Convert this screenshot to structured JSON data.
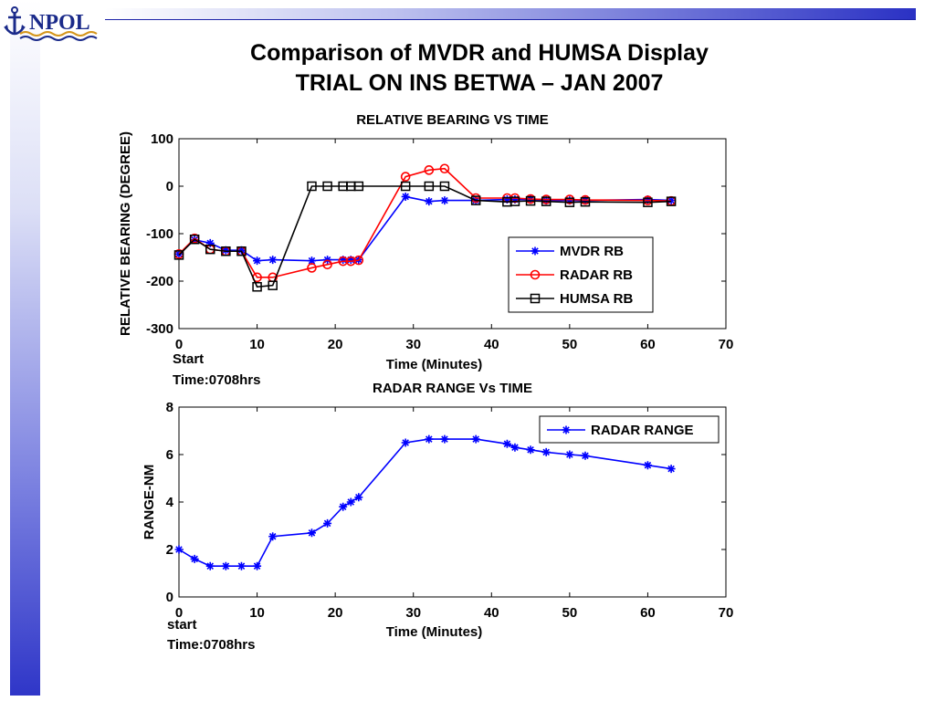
{
  "header": {
    "logo_text": "NPOL",
    "title_line1": "Comparison of MVDR and HUMSA Display",
    "title_line2": "TRIAL ON INS BETWA – JAN 2007"
  },
  "colors": {
    "mvdr": "#0000ff",
    "radar": "#ff0000",
    "humsa": "#000000",
    "range": "#0000ff",
    "accent_blue": "#2a31c4"
  },
  "chart_data": [
    {
      "type": "line",
      "title": "RELATIVE BEARING VS TIME",
      "xlabel": "Time (Minutes)",
      "ylabel": "RELATIVE BEARING (DEGREE)",
      "xlim": [
        0,
        70
      ],
      "ylim": [
        -300,
        100
      ],
      "x_ticks": [
        "0",
        "10",
        "20",
        "30",
        "40",
        "50",
        "60",
        "70"
      ],
      "y_ticks": [
        "100",
        "0",
        "-100",
        "-200",
        "-300"
      ],
      "note_line1": "Start",
      "note_line2": "Time:0708hrs",
      "legend_position": "lower-right",
      "grid": false,
      "series": [
        {
          "name": "MVDR RB",
          "marker": "star",
          "x": [
            0,
            2,
            4,
            6,
            8,
            10,
            12,
            17,
            19,
            21,
            22,
            23,
            29,
            32,
            34,
            38,
            42,
            43,
            45,
            47,
            50,
            52,
            60,
            63
          ],
          "y": [
            -143,
            -113,
            -120,
            -135,
            -135,
            -157,
            -155,
            -157,
            -155,
            -155,
            -155,
            -155,
            -22,
            -32,
            -30,
            -30,
            -28,
            -28,
            -28,
            -30,
            -30,
            -30,
            -28,
            -30
          ]
        },
        {
          "name": "RADAR RB",
          "marker": "circle",
          "x": [
            0,
            2,
            4,
            6,
            8,
            10,
            12,
            17,
            19,
            21,
            22,
            23,
            29,
            32,
            34,
            38,
            42,
            43,
            45,
            47,
            50,
            52,
            60,
            63
          ],
          "y": [
            -143,
            -110,
            -133,
            -137,
            -137,
            -192,
            -192,
            -172,
            -165,
            -158,
            -158,
            -156,
            20,
            34,
            37,
            -25,
            -25,
            -25,
            -27,
            -28,
            -28,
            -29,
            -30,
            -31
          ]
        },
        {
          "name": "HUMSA RB",
          "marker": "square",
          "x": [
            0,
            2,
            4,
            6,
            8,
            10,
            12,
            17,
            19,
            21,
            22,
            23,
            29,
            32,
            34,
            38,
            42,
            43,
            45,
            47,
            50,
            52,
            60,
            63
          ],
          "y": [
            -145,
            -112,
            -133,
            -137,
            -137,
            -212,
            -209,
            0,
            0,
            0,
            0,
            0,
            0,
            0,
            0,
            -30,
            -33,
            -32,
            -31,
            -32,
            -34,
            -33,
            -34,
            -32
          ]
        }
      ]
    },
    {
      "type": "line",
      "title": "RADAR RANGE Vs TIME",
      "xlabel": "Time (Minutes)",
      "ylabel": "RANGE-NM",
      "xlim": [
        0,
        70
      ],
      "ylim": [
        0,
        8
      ],
      "x_ticks": [
        "0",
        "10",
        "20",
        "30",
        "40",
        "50",
        "60",
        "70"
      ],
      "y_ticks": [
        "8",
        "6",
        "4",
        "2",
        "0"
      ],
      "note_line1": "start",
      "note_line2": "Time:0708hrs",
      "legend_position": "top-right",
      "grid": false,
      "series": [
        {
          "name": "RADAR RANGE",
          "marker": "star",
          "x": [
            0,
            2,
            4,
            6,
            8,
            10,
            12,
            17,
            19,
            21,
            22,
            23,
            29,
            32,
            34,
            38,
            42,
            43,
            45,
            47,
            50,
            52,
            60,
            63
          ],
          "y": [
            2.0,
            1.6,
            1.3,
            1.3,
            1.3,
            1.3,
            2.55,
            2.7,
            3.1,
            3.8,
            4.0,
            4.2,
            6.5,
            6.65,
            6.65,
            6.65,
            6.45,
            6.3,
            6.2,
            6.1,
            6.0,
            5.95,
            5.55,
            5.4
          ]
        }
      ]
    }
  ]
}
